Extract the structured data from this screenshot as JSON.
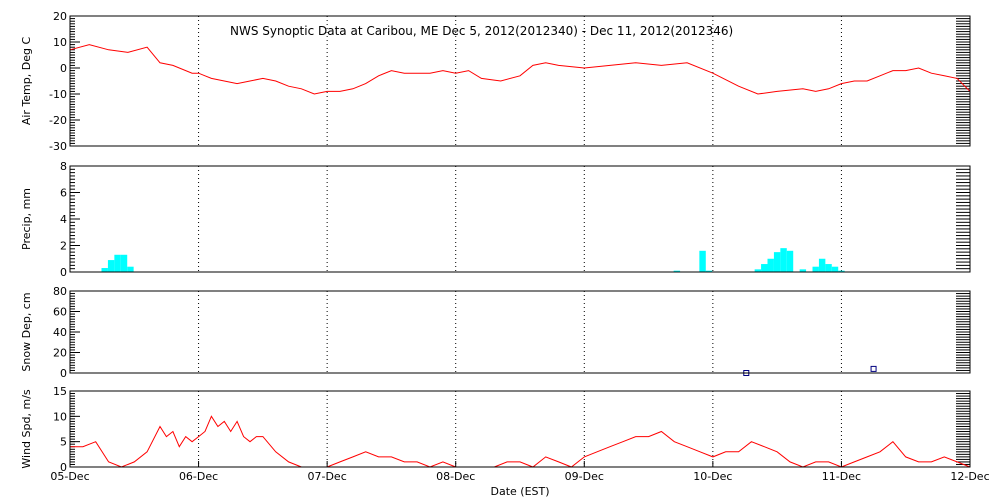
{
  "figure": {
    "title": "NWS Synoptic Data at Caribou, ME   Dec  5, 2012(2012340) - Dec 11, 2012(2012346)",
    "xlabel": "Date (EST)",
    "x_ticks": [
      "05-Dec",
      "06-Dec",
      "07-Dec",
      "08-Dec",
      "09-Dec",
      "10-Dec",
      "11-Dec",
      "12-Dec"
    ],
    "colors": {
      "line": "#ff0000",
      "bar": "#00ffff",
      "marker": "#000080",
      "frame": "#000000"
    }
  },
  "chart_data": [
    {
      "type": "line",
      "ylabel": "Air Temp, Deg C",
      "ylim": [
        -30,
        20
      ],
      "yticks": [
        20,
        10,
        0,
        -10,
        -20,
        -30
      ],
      "grid": "dotted vertical at day boundaries",
      "x_unit": "days since 05-Dec 00:00",
      "series": [
        {
          "x": [
            0.0,
            0.15,
            0.3,
            0.45,
            0.6,
            0.7,
            0.8,
            0.95,
            1.0,
            1.05,
            1.1,
            1.2,
            1.3,
            1.4,
            1.5,
            1.6,
            1.7,
            1.8,
            1.9,
            2.0,
            2.1,
            2.2,
            2.3,
            2.4,
            2.5,
            2.6,
            2.8,
            2.9,
            3.0,
            3.1,
            3.2,
            3.35,
            3.5,
            3.6,
            3.7,
            3.8,
            4.0,
            4.2,
            4.4,
            4.6,
            4.8,
            5.0,
            5.2,
            5.35,
            5.5,
            5.7,
            5.8,
            5.9,
            6.0,
            6.1,
            6.2,
            6.3,
            6.4,
            6.5,
            6.6,
            6.7,
            6.8,
            6.9,
            7.0
          ],
          "y": [
            7,
            9,
            7,
            6,
            8,
            2,
            1,
            -2,
            -2,
            -3,
            -4,
            -5,
            -6,
            -5,
            -4,
            -5,
            -7,
            -8,
            -10,
            -9,
            -9,
            -8,
            -6,
            -3,
            -1,
            -2,
            -2,
            -1,
            -2,
            -1,
            -4,
            -5,
            -3,
            1,
            2,
            1,
            0,
            1,
            2,
            1,
            2,
            -2,
            -7,
            -10,
            -9,
            -8,
            -9,
            -8,
            -6,
            -5,
            -5,
            -3,
            -1,
            -1,
            0,
            -2,
            -3,
            -4,
            -9
          ]
        }
      ]
    },
    {
      "type": "bar",
      "ylabel": "Precip, mm",
      "ylim": [
        0,
        8
      ],
      "yticks": [
        8,
        6,
        4,
        2,
        0
      ],
      "x_unit": "days since 05-Dec 00:00",
      "series": [
        {
          "x": [
            0.27,
            0.32,
            0.37,
            0.42,
            0.47,
            4.72,
            4.92,
            4.97,
            5.35,
            5.4,
            5.45,
            5.5,
            5.55,
            5.6,
            5.7,
            5.8,
            5.85,
            5.9,
            5.95,
            6.0
          ],
          "values": [
            0.3,
            0.9,
            1.3,
            1.3,
            0.4,
            0.1,
            1.6,
            0.1,
            0.2,
            0.6,
            1.0,
            1.5,
            1.8,
            1.6,
            0.2,
            0.4,
            1.0,
            0.6,
            0.4,
            0.1
          ]
        }
      ]
    },
    {
      "type": "scatter",
      "ylabel": "Snow Dep, cm",
      "ylim": [
        0,
        80
      ],
      "yticks": [
        80,
        60,
        40,
        20,
        0
      ],
      "x_unit": "days since 05-Dec 00:00",
      "series": [
        {
          "x": [
            5.26,
            6.25
          ],
          "y": [
            0,
            4
          ]
        }
      ]
    },
    {
      "type": "line",
      "ylabel": "Wind Spd, m/s",
      "ylim": [
        0,
        15
      ],
      "yticks": [
        15,
        10,
        5,
        0
      ],
      "x_unit": "days since 05-Dec 00:00",
      "series": [
        {
          "x": [
            0.0,
            0.1,
            0.2,
            0.3,
            0.4,
            0.5,
            0.6,
            0.7,
            0.75,
            0.8,
            0.85,
            0.9,
            0.95,
            1.0,
            1.05,
            1.1,
            1.15,
            1.2,
            1.25,
            1.3,
            1.35,
            1.4,
            1.45,
            1.5,
            1.6,
            1.7,
            1.8,
            1.9,
            2.0,
            2.1,
            2.2,
            2.3,
            2.4,
            2.5,
            2.6,
            2.7,
            2.8,
            2.9,
            3.0,
            3.1,
            3.2,
            3.3,
            3.4,
            3.5,
            3.6,
            3.7,
            3.8,
            3.9,
            4.0,
            4.1,
            4.2,
            4.3,
            4.4,
            4.5,
            4.6,
            4.7,
            4.8,
            4.9,
            5.0,
            5.1,
            5.2,
            5.3,
            5.4,
            5.5,
            5.6,
            5.7,
            5.8,
            5.9,
            6.0,
            6.1,
            6.2,
            6.3,
            6.4,
            6.5,
            6.6,
            6.7,
            6.8,
            6.9,
            7.0
          ],
          "y": [
            4,
            4,
            5,
            1,
            0,
            1,
            3,
            8,
            6,
            7,
            4,
            6,
            5,
            6,
            7,
            10,
            8,
            9,
            7,
            9,
            6,
            5,
            6,
            6,
            3,
            1,
            0,
            0,
            0,
            1,
            2,
            3,
            2,
            2,
            1,
            1,
            0,
            1,
            0,
            0,
            0,
            0,
            1,
            1,
            0,
            2,
            1,
            0,
            2,
            3,
            4,
            5,
            6,
            6,
            7,
            5,
            4,
            3,
            2,
            3,
            3,
            5,
            4,
            3,
            1,
            0,
            1,
            1,
            0,
            1,
            2,
            3,
            5,
            2,
            1,
            1,
            2,
            1,
            0
          ]
        }
      ]
    }
  ]
}
